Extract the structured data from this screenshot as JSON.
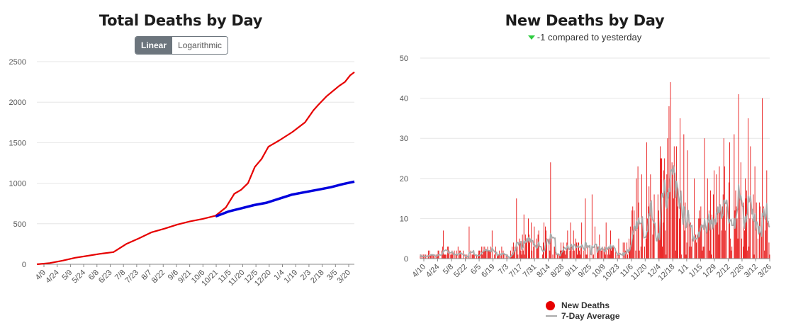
{
  "left_chart": {
    "title": "Total Deaths by Day",
    "scale_toggle": {
      "linear_label": "Linear",
      "log_label": "Logarithmic",
      "selected": "Linear"
    }
  },
  "right_chart": {
    "title": "New Deaths by Day",
    "subtitle": "-1 compared to yesterday",
    "legend": {
      "bars_label": "New Deaths",
      "avg_label": "7-Day Average"
    }
  },
  "colors": {
    "red": "#e60000",
    "blue": "#0000dd",
    "avg": "#aaaaaa",
    "grid": "#e6e6e6",
    "arrow": "#2ecc40"
  },
  "chart_data": [
    {
      "type": "line",
      "title": "Total Deaths by Day",
      "y_ticks": [
        "0",
        "500",
        "1000",
        "1500",
        "2000",
        "2500"
      ],
      "ylim": [
        0,
        2500
      ],
      "x_ticks": [
        "4/9",
        "4/24",
        "5/9",
        "5/24",
        "6/8",
        "6/23",
        "7/8",
        "7/23",
        "8/7",
        "8/22",
        "9/6",
        "9/21",
        "10/6",
        "10/21",
        "11/5",
        "11/20",
        "12/5",
        "12/20",
        "1/4",
        "1/19",
        "2/3",
        "2/18",
        "3/5",
        "3/20"
      ],
      "grid": "horizontal",
      "series": [
        {
          "color": "red",
          "points": [
            [
              0,
              0
            ],
            [
              15,
              15
            ],
            [
              30,
              45
            ],
            [
              45,
              80
            ],
            [
              60,
              105
            ],
            [
              75,
              130
            ],
            [
              90,
              150
            ],
            [
              105,
              250
            ],
            [
              120,
              320
            ],
            [
              135,
              395
            ],
            [
              150,
              440
            ],
            [
              165,
              490
            ],
            [
              180,
              530
            ],
            [
              195,
              560
            ],
            [
              210,
              600
            ],
            [
              222,
              700
            ],
            [
              232,
              870
            ],
            [
              240,
              920
            ],
            [
              248,
              1000
            ],
            [
              256,
              1200
            ],
            [
              264,
              1300
            ],
            [
              272,
              1450
            ],
            [
              285,
              1530
            ],
            [
              300,
              1630
            ],
            [
              315,
              1750
            ],
            [
              325,
              1900
            ],
            [
              330,
              1960
            ],
            [
              340,
              2070
            ],
            [
              355,
              2200
            ],
            [
              362,
              2250
            ],
            [
              368,
              2330
            ],
            [
              373,
              2370
            ]
          ]
        },
        {
          "color": "blue",
          "points": [
            [
              210,
              590
            ],
            [
              225,
              650
            ],
            [
              240,
              690
            ],
            [
              255,
              730
            ],
            [
              270,
              760
            ],
            [
              285,
              810
            ],
            [
              300,
              860
            ],
            [
              315,
              890
            ],
            [
              330,
              920
            ],
            [
              345,
              950
            ],
            [
              360,
              990
            ],
            [
              373,
              1020
            ]
          ]
        }
      ]
    },
    {
      "type": "bar",
      "title": "New Deaths by Day",
      "y_ticks": [
        "0",
        "10",
        "20",
        "30",
        "40",
        "50"
      ],
      "ylim": [
        0,
        50
      ],
      "x_ticks": [
        "4/10",
        "4/24",
        "5/8",
        "5/22",
        "6/5",
        "6/19",
        "7/3",
        "7/17",
        "7/31",
        "8/14",
        "8/28",
        "9/11",
        "9/25",
        "10/9",
        "10/23",
        "11/6",
        "11/20",
        "12/4",
        "12/18",
        "1/1",
        "1/15",
        "1/29",
        "2/12",
        "2/26",
        "3/12",
        "3/26"
      ],
      "grid": "horizontal",
      "series": [
        {
          "name": "New Deaths",
          "color": "red",
          "style": "bars"
        },
        {
          "name": "7-Day Average",
          "color": "avg",
          "style": "line"
        }
      ],
      "profile": [
        [
          0,
          1
        ],
        [
          15,
          1.5
        ],
        [
          30,
          2
        ],
        [
          45,
          2
        ],
        [
          60,
          2
        ],
        [
          75,
          2
        ],
        [
          90,
          2
        ],
        [
          100,
          3
        ],
        [
          110,
          5
        ],
        [
          120,
          7
        ],
        [
          130,
          5
        ],
        [
          140,
          3
        ],
        [
          150,
          3
        ],
        [
          160,
          3
        ],
        [
          170,
          2.5
        ],
        [
          180,
          2
        ],
        [
          190,
          2
        ],
        [
          200,
          2.5
        ],
        [
          210,
          3
        ],
        [
          215,
          8
        ],
        [
          220,
          13
        ],
        [
          230,
          14
        ],
        [
          240,
          16
        ],
        [
          250,
          23
        ],
        [
          255,
          18
        ],
        [
          260,
          14
        ],
        [
          270,
          9
        ],
        [
          280,
          8
        ],
        [
          290,
          10
        ],
        [
          300,
          15
        ],
        [
          310,
          18
        ],
        [
          320,
          11
        ],
        [
          330,
          12
        ],
        [
          340,
          11
        ],
        [
          350,
          9
        ],
        [
          355,
          6
        ]
      ],
      "peaks": [
        [
          31,
          7
        ],
        [
          66,
          8
        ],
        [
          97,
          7
        ],
        [
          130,
          15
        ],
        [
          140,
          11
        ],
        [
          146,
          10
        ],
        [
          150,
          9
        ],
        [
          176,
          24
        ],
        [
          199,
          7
        ],
        [
          203,
          9
        ],
        [
          207,
          7
        ],
        [
          218,
          9
        ],
        [
          223,
          15
        ],
        [
          232,
          16
        ],
        [
          236,
          8
        ],
        [
          242,
          6
        ],
        [
          251,
          9
        ],
        [
          257,
          7
        ],
        [
          268,
          5
        ],
        [
          274,
          4
        ],
        [
          286,
          12
        ],
        [
          294,
          23
        ],
        [
          299,
          21
        ],
        [
          306,
          29
        ],
        [
          311,
          21
        ],
        [
          316,
          16
        ],
        [
          324,
          28
        ],
        [
          330,
          25
        ],
        [
          336,
          38
        ],
        [
          338,
          44
        ],
        [
          343,
          28
        ],
        [
          346,
          28
        ],
        [
          351,
          35
        ],
        [
          356,
          31
        ],
        [
          361,
          27
        ],
        [
          370,
          20
        ],
        [
          377,
          12
        ],
        [
          384,
          30
        ],
        [
          388,
          20
        ],
        [
          394,
          11
        ],
        [
          399,
          10
        ],
        [
          405,
          13
        ],
        [
          410,
          30
        ],
        [
          418,
          29
        ],
        [
          424,
          31
        ],
        [
          430,
          41
        ],
        [
          433,
          24
        ],
        [
          439,
          20
        ],
        [
          443,
          35
        ],
        [
          446,
          28
        ],
        [
          452,
          23
        ],
        [
          458,
          14
        ],
        [
          462,
          40
        ],
        [
          468,
          22
        ],
        [
          471,
          4
        ]
      ],
      "n_days": 473,
      "seed": 7
    }
  ]
}
